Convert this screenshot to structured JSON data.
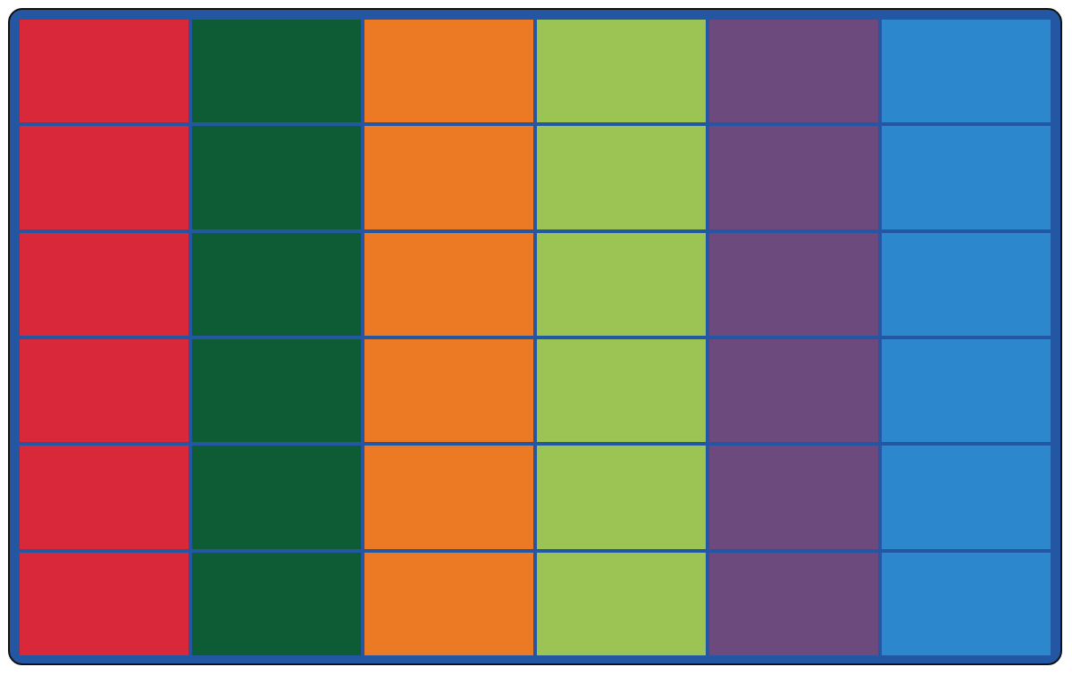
{
  "rug": {
    "rows": 6,
    "columns": [
      {
        "color_name": "red",
        "color": "#d9283a"
      },
      {
        "color_name": "green",
        "color": "#0d5c35"
      },
      {
        "color_name": "orange",
        "color": "#ec7a25"
      },
      {
        "color_name": "lime",
        "color": "#9bc454"
      },
      {
        "color_name": "purple",
        "color": "#6d4a7e"
      },
      {
        "color_name": "blue",
        "color": "#2c87cc"
      }
    ],
    "border_color": "#2356a3",
    "edge_color": "#111111"
  }
}
